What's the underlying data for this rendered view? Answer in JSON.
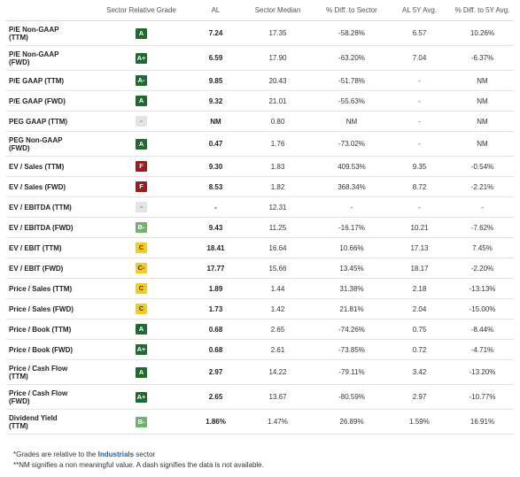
{
  "columns": [
    "",
    "Sector Relative Grade",
    "AL",
    "Sector Median",
    "% Diff. to Sector",
    "AL 5Y Avg.",
    "% Diff. to 5Y Avg."
  ],
  "rows": [
    {
      "metric": [
        "P/E Non-GAAP",
        "(TTM)"
      ],
      "grade": "A",
      "grade_color": "dark-green",
      "al": "7.24",
      "median": "17.35",
      "diff_sector": "-58.28%",
      "avg5y": "6.57",
      "diff_5y": "10.26%"
    },
    {
      "metric": [
        "P/E Non-GAAP",
        "(FWD)"
      ],
      "grade": "A+",
      "grade_color": "dark-green",
      "al": "6.59",
      "median": "17.90",
      "diff_sector": "-63.20%",
      "avg5y": "7.04",
      "diff_5y": "-6.37%"
    },
    {
      "metric": [
        "P/E GAAP (TTM)"
      ],
      "grade": "A-",
      "grade_color": "dark-green",
      "al": "9.85",
      "median": "20.43",
      "diff_sector": "-51.78%",
      "avg5y": "-",
      "diff_5y": "NM"
    },
    {
      "metric": [
        "P/E GAAP (FWD)"
      ],
      "grade": "A",
      "grade_color": "dark-green",
      "al": "9.32",
      "median": "21.01",
      "diff_sector": "-55.63%",
      "avg5y": "-",
      "diff_5y": "NM"
    },
    {
      "metric": [
        "PEG GAAP (TTM)"
      ],
      "grade": "-",
      "grade_color": "gray",
      "al": "NM",
      "median": "0.80",
      "diff_sector": "NM",
      "avg5y": "-",
      "diff_5y": "NM"
    },
    {
      "metric": [
        "PEG Non-GAAP",
        "(FWD)"
      ],
      "grade": "A",
      "grade_color": "dark-green",
      "al": "0.47",
      "median": "1.76",
      "diff_sector": "-73.02%",
      "avg5y": "-",
      "diff_5y": "NM"
    },
    {
      "metric": [
        "EV / Sales (TTM)"
      ],
      "grade": "F",
      "grade_color": "red",
      "al": "9.30",
      "median": "1.83",
      "diff_sector": "409.53%",
      "avg5y": "9.35",
      "diff_5y": "-0.54%"
    },
    {
      "metric": [
        "EV / Sales (FWD)"
      ],
      "grade": "F",
      "grade_color": "red",
      "al": "8.53",
      "median": "1.82",
      "diff_sector": "368.34%",
      "avg5y": "8.72",
      "diff_5y": "-2.21%"
    },
    {
      "metric": [
        "EV / EBITDA (TTM)"
      ],
      "grade": "-",
      "grade_color": "gray",
      "al": "-",
      "median": "12.31",
      "diff_sector": "-",
      "avg5y": "-",
      "diff_5y": "-"
    },
    {
      "metric": [
        "EV / EBITDA (FWD)"
      ],
      "grade": "B-",
      "grade_color": "light-green",
      "al": "9.43",
      "median": "11.25",
      "diff_sector": "-16.17%",
      "avg5y": "10.21",
      "diff_5y": "-7.62%"
    },
    {
      "metric": [
        "EV / EBIT (TTM)"
      ],
      "grade": "C",
      "grade_color": "yellow",
      "al": "18.41",
      "median": "16.64",
      "diff_sector": "10.66%",
      "avg5y": "17.13",
      "diff_5y": "7.45%"
    },
    {
      "metric": [
        "EV / EBIT (FWD)"
      ],
      "grade": "C-",
      "grade_color": "yellow",
      "al": "17.77",
      "median": "15.66",
      "diff_sector": "13.45%",
      "avg5y": "18.17",
      "diff_5y": "-2.20%"
    },
    {
      "metric": [
        "Price / Sales (TTM)"
      ],
      "grade": "C",
      "grade_color": "yellow",
      "al": "1.89",
      "median": "1.44",
      "diff_sector": "31.38%",
      "avg5y": "2.18",
      "diff_5y": "-13.13%"
    },
    {
      "metric": [
        "Price / Sales (FWD)"
      ],
      "grade": "C",
      "grade_color": "yellow",
      "al": "1.73",
      "median": "1.42",
      "diff_sector": "21.81%",
      "avg5y": "2.04",
      "diff_5y": "-15.00%"
    },
    {
      "metric": [
        "Price / Book (TTM)"
      ],
      "grade": "A",
      "grade_color": "dark-green",
      "al": "0.68",
      "median": "2.65",
      "diff_sector": "-74.26%",
      "avg5y": "0.75",
      "diff_5y": "-8.44%"
    },
    {
      "metric": [
        "Price / Book (FWD)"
      ],
      "grade": "A+",
      "grade_color": "dark-green",
      "al": "0.68",
      "median": "2.61",
      "diff_sector": "-73.85%",
      "avg5y": "0.72",
      "diff_5y": "-4.71%"
    },
    {
      "metric": [
        "Price / Cash Flow",
        "(TTM)"
      ],
      "grade": "A",
      "grade_color": "dark-green",
      "al": "2.97",
      "median": "14.22",
      "diff_sector": "-79.11%",
      "avg5y": "3.42",
      "diff_5y": "-13.20%"
    },
    {
      "metric": [
        "Price / Cash Flow",
        "(FWD)"
      ],
      "grade": "A+",
      "grade_color": "dark-green",
      "al": "2.65",
      "median": "13.67",
      "diff_sector": "-80.59%",
      "avg5y": "2.97",
      "diff_5y": "-10.77%"
    },
    {
      "metric": [
        "Dividend Yield",
        "(TTM)"
      ],
      "grade": "B-",
      "grade_color": "light-green",
      "al": "1.86%",
      "median": "1.47%",
      "diff_sector": "26.89%",
      "avg5y": "1.59%",
      "diff_5y": "16.91%"
    }
  ],
  "footnotes": {
    "line1_prefix": "*Grades are relative to the ",
    "line1_sector": "Industrials",
    "line1_suffix": " sector",
    "line2": "**NM signifies a non meaningful value. A dash signifies the data is not available."
  },
  "grade_colors": {
    "dark-green": "#1e6b2f",
    "light-green": "#6fb36b",
    "yellow": "#f4cc1e",
    "red": "#9b1e1e",
    "gray": "#e4e4e4"
  }
}
